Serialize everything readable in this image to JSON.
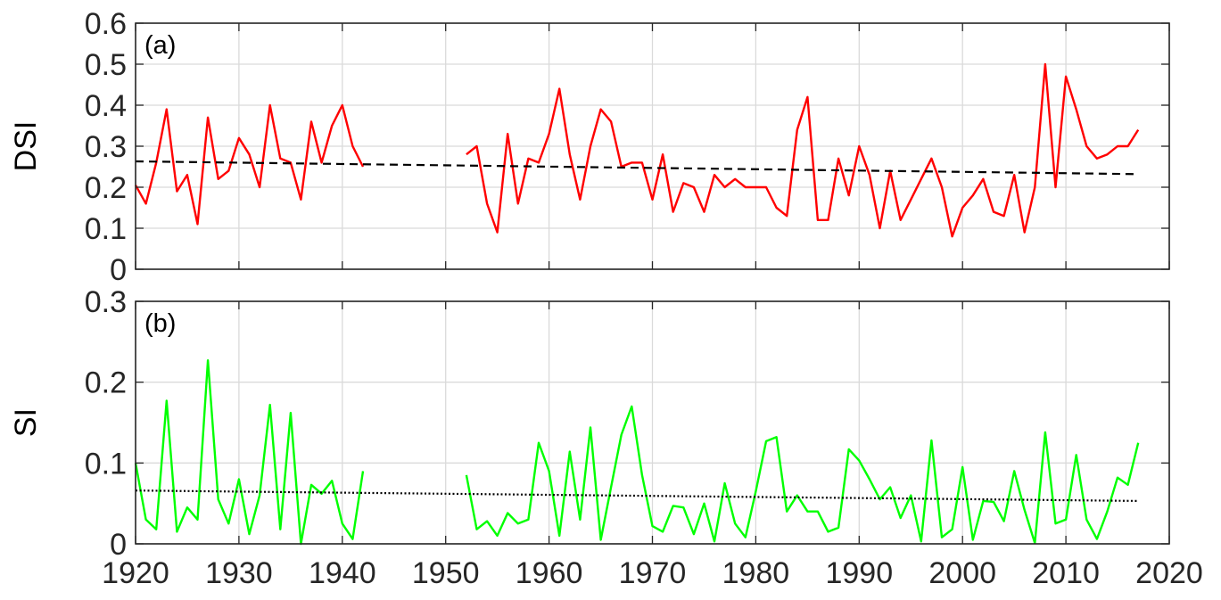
{
  "chart_data": [
    {
      "type": "line",
      "panel_label": "(a)",
      "xlabel": "",
      "ylabel": "DSI",
      "xlim": [
        1920,
        2020
      ],
      "ylim": [
        0,
        0.6
      ],
      "yticks": [
        "0",
        "0.1",
        "0.2",
        "0.3",
        "0.4",
        "0.5",
        "0.6"
      ],
      "grid": true,
      "series": [
        {
          "color": "#ff0000",
          "style": "solid",
          "segments": [
            {
              "x": [
                1920,
                1921,
                1922,
                1923,
                1924,
                1925,
                1926,
                1927,
                1928,
                1929,
                1930,
                1931,
                1932,
                1933,
                1934,
                1935,
                1936,
                1937,
                1938,
                1939,
                1940,
                1941,
                1942
              ],
              "y": [
                0.205,
                0.16,
                0.26,
                0.39,
                0.19,
                0.23,
                0.11,
                0.37,
                0.22,
                0.24,
                0.32,
                0.28,
                0.2,
                0.4,
                0.27,
                0.26,
                0.17,
                0.36,
                0.26,
                0.35,
                0.4,
                0.3,
                0.25
              ]
            },
            {
              "x": [
                1952,
                1953,
                1954,
                1955,
                1956,
                1957,
                1958,
                1959,
                1960,
                1961,
                1962,
                1963,
                1964,
                1965,
                1966,
                1967,
                1968,
                1969,
                1970,
                1971,
                1972,
                1973,
                1974,
                1975,
                1976,
                1977,
                1978,
                1979,
                1980,
                1981,
                1982,
                1983,
                1984,
                1985,
                1986,
                1987,
                1988,
                1989,
                1990,
                1991,
                1992,
                1993,
                1994,
                1995,
                1996,
                1997,
                1998,
                1999,
                2000,
                2001,
                2002,
                2003,
                2004,
                2005,
                2006,
                2007,
                2008,
                2009,
                2010,
                2011,
                2012,
                2013,
                2014,
                2015,
                2016,
                2017
              ],
              "y": [
                0.28,
                0.3,
                0.16,
                0.09,
                0.33,
                0.16,
                0.27,
                0.26,
                0.33,
                0.44,
                0.28,
                0.17,
                0.3,
                0.39,
                0.36,
                0.25,
                0.26,
                0.26,
                0.17,
                0.28,
                0.14,
                0.21,
                0.2,
                0.14,
                0.23,
                0.2,
                0.22,
                0.2,
                0.2,
                0.2,
                0.15,
                0.13,
                0.34,
                0.42,
                0.12,
                0.12,
                0.27,
                0.18,
                0.3,
                0.23,
                0.1,
                0.24,
                0.12,
                0.17,
                0.22,
                0.27,
                0.2,
                0.08,
                0.15,
                0.18,
                0.22,
                0.14,
                0.13,
                0.23,
                0.09,
                0.2,
                0.5,
                0.2,
                0.47,
                0.39,
                0.3,
                0.27,
                0.28,
                0.3,
                0.3,
                0.34
              ]
            }
          ]
        },
        {
          "color": "#000000",
          "style": "dashed",
          "segments": [
            {
              "x": [
                1920,
                2017
              ],
              "y": [
                0.263,
                0.232
              ]
            }
          ]
        }
      ]
    },
    {
      "type": "line",
      "panel_label": "(b)",
      "xlabel": "",
      "ylabel": "SI",
      "xlim": [
        1920,
        2020
      ],
      "ylim": [
        0,
        0.3
      ],
      "yticks": [
        "0",
        "0.1",
        "0.2",
        "0.3"
      ],
      "xticks": [
        "1920",
        "1930",
        "1940",
        "1950",
        "1960",
        "1970",
        "1980",
        "1990",
        "2000",
        "2010",
        "2020"
      ],
      "grid": true,
      "series": [
        {
          "color": "#00ff00",
          "style": "solid",
          "segments": [
            {
              "x": [
                1920,
                1921,
                1922,
                1923,
                1924,
                1925,
                1926,
                1927,
                1928,
                1929,
                1930,
                1931,
                1932,
                1933,
                1934,
                1935,
                1936,
                1937,
                1938,
                1939,
                1940,
                1941,
                1942
              ],
              "y": [
                0.1,
                0.03,
                0.018,
                0.177,
                0.015,
                0.045,
                0.03,
                0.227,
                0.055,
                0.025,
                0.08,
                0.012,
                0.06,
                0.172,
                0.018,
                0.162,
                0.0,
                0.073,
                0.062,
                0.078,
                0.025,
                0.006,
                0.09
              ]
            },
            {
              "x": [
                1952,
                1953,
                1954,
                1955,
                1956,
                1957,
                1958,
                1959,
                1960,
                1961,
                1962,
                1963,
                1964,
                1965,
                1966,
                1967,
                1968,
                1969,
                1970,
                1971,
                1972,
                1973,
                1974,
                1975,
                1976,
                1977,
                1978,
                1979,
                1980,
                1981,
                1982,
                1983,
                1984,
                1985,
                1986,
                1987,
                1988,
                1989,
                1990,
                1991,
                1992,
                1993,
                1994,
                1995,
                1996,
                1997,
                1998,
                1999,
                2000,
                2001,
                2002,
                2003,
                2004,
                2005,
                2006,
                2007,
                2008,
                2009,
                2010,
                2011,
                2012,
                2013,
                2014,
                2015,
                2016,
                2017
              ],
              "y": [
                0.085,
                0.018,
                0.028,
                0.01,
                0.038,
                0.025,
                0.03,
                0.125,
                0.09,
                0.01,
                0.114,
                0.03,
                0.144,
                0.005,
                0.07,
                0.135,
                0.17,
                0.085,
                0.022,
                0.015,
                0.047,
                0.045,
                0.012,
                0.05,
                0.003,
                0.075,
                0.025,
                0.008,
                0.065,
                0.127,
                0.132,
                0.04,
                0.06,
                0.04,
                0.04,
                0.015,
                0.02,
                0.117,
                0.103,
                0.08,
                0.055,
                0.07,
                0.032,
                0.06,
                0.003,
                0.128,
                0.008,
                0.018,
                0.095,
                0.005,
                0.053,
                0.052,
                0.028,
                0.09,
                0.042,
                0.001,
                0.138,
                0.025,
                0.03,
                0.11,
                0.03,
                0.006,
                0.04,
                0.082,
                0.073,
                0.125
              ]
            }
          ]
        },
        {
          "color": "#000000",
          "style": "dotted",
          "segments": [
            {
              "x": [
                1920,
                2017
              ],
              "y": [
                0.066,
                0.053
              ]
            }
          ]
        }
      ]
    }
  ]
}
